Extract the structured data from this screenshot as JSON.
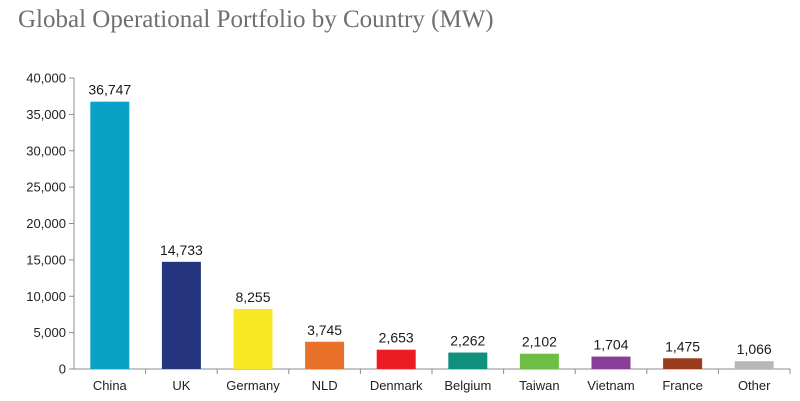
{
  "chart_data": {
    "type": "bar",
    "title": "Global Operational Portfolio by Country (MW)",
    "xlabel": "",
    "ylabel": "",
    "ylim": [
      0,
      40000
    ],
    "yticks": [
      0,
      5000,
      10000,
      15000,
      20000,
      25000,
      30000,
      35000,
      40000
    ],
    "ytick_labels": [
      "0",
      "5,000",
      "10,000",
      "15,000",
      "20,000",
      "25,000",
      "30,000",
      "35,000",
      "40,000"
    ],
    "categories": [
      "China",
      "UK",
      "Germany",
      "NLD",
      "Denmark",
      "Belgium",
      "Taiwan",
      "Vietnam",
      "France",
      "Other"
    ],
    "values": [
      36747,
      14733,
      8255,
      3745,
      2653,
      2262,
      2102,
      1704,
      1475,
      1066
    ],
    "value_labels": [
      "36,747",
      "14,733",
      "8,255",
      "3,745",
      "2,653",
      "2,262",
      "2,102",
      "1,704",
      "1,475",
      "1,066"
    ],
    "colors": [
      "#0aa1c6",
      "#263580",
      "#f7e823",
      "#e9722a",
      "#ec1c24",
      "#10907e",
      "#6fbe44",
      "#8a3c99",
      "#9a3b1e",
      "#b8b8b8"
    ],
    "grid": false,
    "legend": "none"
  }
}
